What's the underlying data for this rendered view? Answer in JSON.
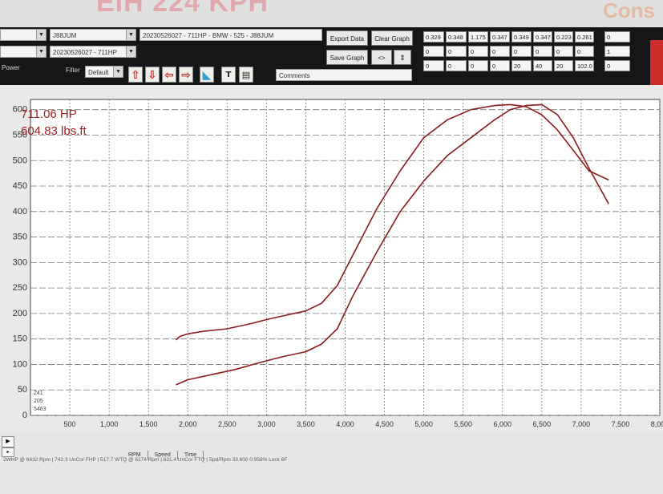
{
  "banner": {
    "title": "EIH 224 KPH",
    "right_text": "Cons"
  },
  "toolbar": {
    "dropdown_1": "J88JUM",
    "dropdown_2": "20230526027 - 711HP",
    "run_select": "20230526027 - 711HP - BMW - 525 - J88JUM",
    "power_label": "Power",
    "filter_label": "Filter",
    "filter_value": "Default",
    "comments_label": "Comments",
    "export_label": "Export Data",
    "clear_label": "Clear Graph",
    "save_label": "Save Graph",
    "nav_label": "<>"
  },
  "grid_cells": {
    "row1": [
      "0.329",
      "0.348",
      "1.175",
      "0.347",
      "0.349",
      "0.347",
      "0.223",
      "0.261",
      "0"
    ],
    "row2": [
      "0",
      "0",
      "0",
      "0",
      "0",
      "0",
      "0",
      "0",
      "1"
    ],
    "row3": [
      "0",
      "0",
      "0",
      "0",
      "20",
      "40",
      "20",
      "102.0",
      "0"
    ]
  },
  "readout": {
    "max_hp": "711.06 HP",
    "max_torque": "604.83 lbs.ft"
  },
  "axis_readout": [
    "241",
    "205",
    "5463"
  ],
  "chart_data": {
    "type": "line",
    "xlim": [
      0,
      8000
    ],
    "ylim": [
      0,
      620
    ],
    "x_ticks": [
      500,
      1000,
      1500,
      2000,
      2500,
      3000,
      3500,
      4000,
      4500,
      5000,
      5500,
      6000,
      6500,
      7000,
      7500,
      8000
    ],
    "x_tick_labels": [
      "500",
      "1,000",
      "1,500",
      "2,000",
      "2,500",
      "3,000",
      "3,500",
      "4,000",
      "4,500",
      "5,000",
      "5,500",
      "6,000",
      "6,500",
      "7,000",
      "7,500",
      "8,000"
    ],
    "y_ticks": [
      0,
      50,
      100,
      150,
      200,
      250,
      300,
      350,
      400,
      450,
      500,
      550,
      600
    ],
    "y_tick_labels": [
      "0",
      "50",
      "100",
      "150",
      "200",
      "250",
      "300",
      "350",
      "400",
      "450",
      "500",
      "550",
      "600"
    ],
    "grid": true,
    "series": [
      {
        "color": "#8b1b1f",
        "x": [
          1850,
          1900,
          2000,
          2200,
          2500,
          2800,
          3000,
          3200,
          3500,
          3700,
          3900,
          4100,
          4400,
          4700,
          5000,
          5300,
          5600,
          5900,
          6100,
          6300,
          6500,
          6700,
          6900,
          7100,
          7350
        ],
        "y": [
          148,
          155,
          160,
          165,
          170,
          180,
          188,
          195,
          205,
          220,
          255,
          315,
          405,
          480,
          545,
          580,
          600,
          608,
          610,
          606,
          590,
          560,
          520,
          480,
          462
        ]
      },
      {
        "color": "#8b1b1f",
        "x": [
          1850,
          2000,
          2300,
          2600,
          2900,
          3200,
          3500,
          3700,
          3900,
          4100,
          4400,
          4700,
          5000,
          5300,
          5600,
          5900,
          6100,
          6300,
          6500,
          6700,
          6900,
          7100,
          7350
        ],
        "y": [
          60,
          70,
          80,
          90,
          103,
          115,
          125,
          140,
          170,
          235,
          320,
          400,
          460,
          510,
          545,
          580,
          600,
          608,
          610,
          590,
          545,
          485,
          415
        ]
      }
    ]
  },
  "footer": {
    "tabs": [
      "RPM",
      "Speed",
      "Time"
    ],
    "status": "2WHP @ 6432 Rpm | 742.3 UnCor FHP | 517.7 WTQ @ 6174 Rpm | 631.4 UnCor FTQ | Spd/Rpm 33.600 0.958% Lock 6F"
  }
}
